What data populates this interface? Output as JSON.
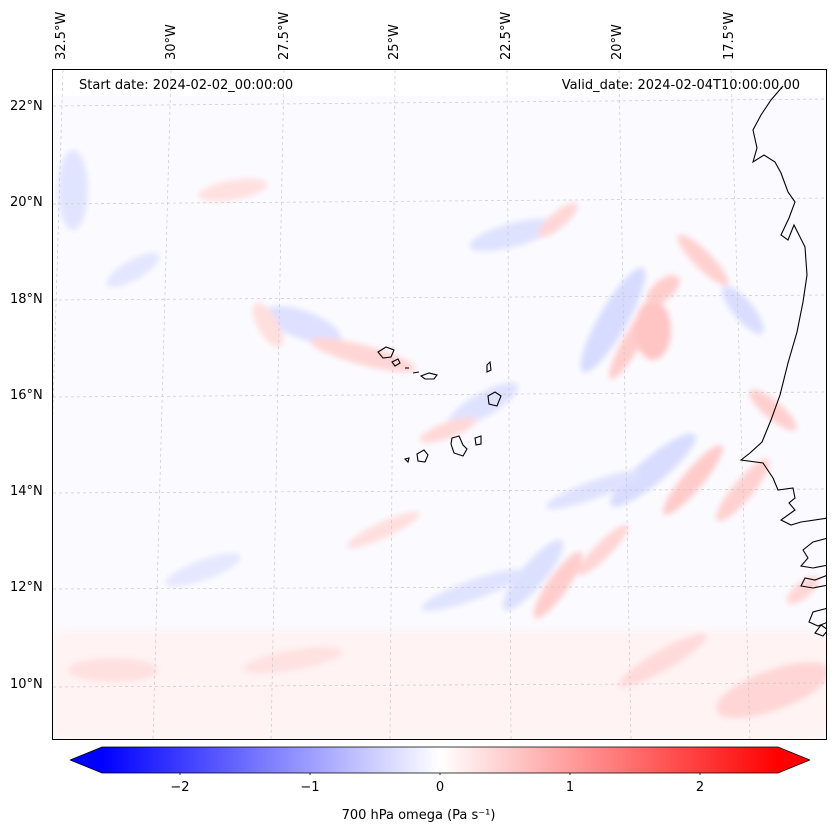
{
  "header": {
    "start_date": "Start date: 2024-02-02_00:00:00",
    "valid_date": "Valid_date: 2024-02-04T10:00:00.00"
  },
  "axes": {
    "longitude_labels": [
      "32.5°W",
      "30°W",
      "27.5°W",
      "25°W",
      "22.5°W",
      "20°W",
      "17.5°W"
    ],
    "latitude_labels": [
      "22°N",
      "20°N",
      "18°N",
      "16°N",
      "14°N",
      "12°N",
      "10°N"
    ]
  },
  "colorbar": {
    "label": "700 hPa omega (Pa s⁻¹)",
    "ticks": [
      "−2",
      "−1",
      "0",
      "1",
      "2"
    ],
    "range": [
      -2.6,
      2.6
    ],
    "colors": {
      "negative": "#0000ff",
      "neutral": "#ffffff",
      "positive": "#ff0000"
    }
  },
  "map": {
    "field": "700 hPa omega",
    "region": "Cape Verde and West African coast",
    "coast_color": "#000000",
    "grid_color": "#c8c8c8"
  }
}
